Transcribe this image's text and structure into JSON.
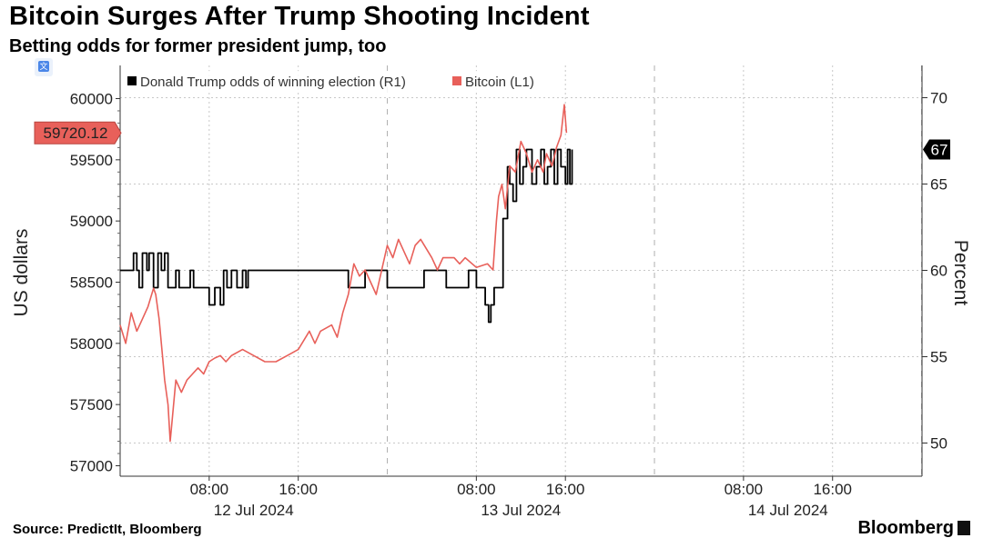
{
  "title": "Bitcoin Surges After Trump Shooting Incident",
  "subtitle": "Betting odds for former president jump, too",
  "source": "Source: PredictIt, Bloomberg",
  "brand": "Bloomberg",
  "colors": {
    "trump": "#000000",
    "bitcoin": "#e8605a",
    "last_price_bg": "#e8605a",
    "grid": "#c8c8c8"
  },
  "chart_data": {
    "type": "line",
    "x_axis": {
      "range_hours": [
        0,
        72
      ],
      "time_ticks": [
        {
          "hour": 8,
          "label": "08:00"
        },
        {
          "hour": 16,
          "label": "16:00"
        },
        {
          "hour": 32,
          "label": "08:00"
        },
        {
          "hour": 40,
          "label": "16:00"
        },
        {
          "hour": 56,
          "label": "08:00"
        },
        {
          "hour": 64,
          "label": "16:00"
        }
      ],
      "date_labels": [
        {
          "hour": 12,
          "label": "12 Jul 2024"
        },
        {
          "hour": 36,
          "label": "13 Jul 2024"
        },
        {
          "hour": 60,
          "label": "14 Jul 2024"
        }
      ],
      "day_separators": [
        24,
        48
      ]
    },
    "y_left": {
      "label": "US dollars",
      "range": [
        57000,
        60000
      ],
      "ticks": [
        57000,
        57500,
        58000,
        58500,
        59000,
        59500,
        60000
      ],
      "tick_labels": [
        "57000",
        "57500",
        "58000",
        "58500",
        "59000",
        "59500",
        "60000"
      ]
    },
    "y_right": {
      "label": "Percent",
      "range": [
        50,
        70
      ],
      "ticks": [
        50,
        55,
        60,
        65,
        70
      ],
      "tick_labels": [
        "50",
        "55",
        "60",
        "65",
        "70"
      ]
    },
    "grid": true,
    "legend": {
      "position": "top-left"
    },
    "series": [
      {
        "name": "Donald Trump odds of winning election (R1)",
        "axis": "right",
        "color": "#000000",
        "step": true,
        "points": [
          [
            0,
            60
          ],
          [
            1,
            60
          ],
          [
            1.2,
            61
          ],
          [
            1.5,
            60
          ],
          [
            1.7,
            59
          ],
          [
            2,
            61
          ],
          [
            2.4,
            60
          ],
          [
            2.6,
            61
          ],
          [
            3,
            59
          ],
          [
            3.4,
            61
          ],
          [
            3.7,
            60
          ],
          [
            4,
            61
          ],
          [
            4.3,
            59
          ],
          [
            5,
            60
          ],
          [
            5.3,
            59
          ],
          [
            6,
            59
          ],
          [
            6.3,
            60
          ],
          [
            6.6,
            59
          ],
          [
            7.5,
            59
          ],
          [
            8,
            58
          ],
          [
            8.5,
            59
          ],
          [
            9,
            58
          ],
          [
            9.3,
            60
          ],
          [
            9.6,
            59
          ],
          [
            10,
            60
          ],
          [
            10.5,
            59
          ],
          [
            11,
            60
          ],
          [
            11.3,
            59
          ],
          [
            11.5,
            60
          ],
          [
            12,
            60
          ],
          [
            20,
            60
          ],
          [
            20.1,
            60
          ],
          [
            20.5,
            59
          ],
          [
            22,
            60
          ],
          [
            23,
            60
          ],
          [
            24,
            59
          ],
          [
            27,
            59
          ],
          [
            27.3,
            60
          ],
          [
            29,
            60
          ],
          [
            29.3,
            59
          ],
          [
            31,
            59
          ],
          [
            31.3,
            60
          ],
          [
            32,
            59
          ],
          [
            32.8,
            58
          ],
          [
            33.1,
            57
          ],
          [
            33.3,
            58
          ],
          [
            33.6,
            59
          ],
          [
            34,
            59
          ],
          [
            34.4,
            63
          ],
          [
            34.8,
            66
          ],
          [
            35,
            65
          ],
          [
            35.3,
            64
          ],
          [
            35.6,
            67
          ],
          [
            35.9,
            65
          ],
          [
            36.2,
            66
          ],
          [
            36.5,
            67
          ],
          [
            37,
            65
          ],
          [
            37.4,
            66
          ],
          [
            37.8,
            67
          ],
          [
            38.1,
            65
          ],
          [
            38.4,
            66
          ],
          [
            38.7,
            67
          ],
          [
            39,
            65
          ],
          [
            39.3,
            67
          ],
          [
            39.6,
            66
          ],
          [
            40,
            65
          ],
          [
            40.2,
            67
          ],
          [
            40.4,
            65
          ],
          [
            40.6,
            67
          ]
        ]
      },
      {
        "name": "Bitcoin (L1)",
        "axis": "left",
        "color": "#e8605a",
        "last_price": "59720.12",
        "points": [
          [
            0,
            58150
          ],
          [
            0.5,
            58000
          ],
          [
            1,
            58250
          ],
          [
            1.5,
            58100
          ],
          [
            2,
            58200
          ],
          [
            2.5,
            58300
          ],
          [
            3,
            58450
          ],
          [
            3.2,
            58400
          ],
          [
            3.5,
            58200
          ],
          [
            3.8,
            57900
          ],
          [
            4,
            57700
          ],
          [
            4.3,
            57500
          ],
          [
            4.5,
            57200
          ],
          [
            4.7,
            57400
          ],
          [
            5,
            57700
          ],
          [
            5.5,
            57600
          ],
          [
            6,
            57700
          ],
          [
            6.5,
            57750
          ],
          [
            7,
            57800
          ],
          [
            7.5,
            57750
          ],
          [
            8,
            57850
          ],
          [
            8.5,
            57880
          ],
          [
            9,
            57900
          ],
          [
            9.5,
            57850
          ],
          [
            10,
            57900
          ],
          [
            11,
            57950
          ],
          [
            12,
            57900
          ],
          [
            13,
            57850
          ],
          [
            14,
            57850
          ],
          [
            15,
            57900
          ],
          [
            16,
            57950
          ],
          [
            17,
            58100
          ],
          [
            17.5,
            58000
          ],
          [
            18,
            58100
          ],
          [
            19,
            58150
          ],
          [
            19.5,
            58050
          ],
          [
            20,
            58250
          ],
          [
            20.5,
            58400
          ],
          [
            21,
            58650
          ],
          [
            21.5,
            58550
          ],
          [
            22,
            58600
          ],
          [
            23,
            58400
          ],
          [
            23.5,
            58600
          ],
          [
            24,
            58800
          ],
          [
            24.5,
            58700
          ],
          [
            25,
            58850
          ],
          [
            26,
            58650
          ],
          [
            26.5,
            58800
          ],
          [
            27,
            58850
          ],
          [
            28,
            58700
          ],
          [
            28.5,
            58600
          ],
          [
            29,
            58700
          ],
          [
            30,
            58700
          ],
          [
            30.5,
            58650
          ],
          [
            31,
            58700
          ],
          [
            32,
            58620
          ],
          [
            33,
            58650
          ],
          [
            33.5,
            58600
          ],
          [
            33.8,
            59000
          ],
          [
            34,
            59200
          ],
          [
            34.3,
            59300
          ],
          [
            34.6,
            59100
          ],
          [
            35,
            59450
          ],
          [
            35.5,
            59400
          ],
          [
            36,
            59650
          ],
          [
            36.5,
            59550
          ],
          [
            37,
            59400
          ],
          [
            37.5,
            59500
          ],
          [
            38,
            59400
          ],
          [
            38.3,
            59550
          ],
          [
            38.8,
            59450
          ],
          [
            39.2,
            59600
          ],
          [
            39.6,
            59700
          ],
          [
            39.9,
            59950
          ],
          [
            40.1,
            59720
          ]
        ]
      }
    ]
  }
}
